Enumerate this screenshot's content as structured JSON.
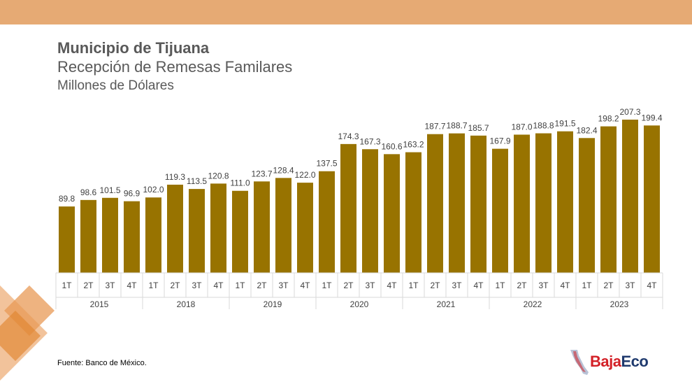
{
  "header": {
    "title": "Municipio de Tijuana",
    "subtitle": "Recepción de Remesas Familares",
    "units": "Millones de Dólares"
  },
  "footer": {
    "source": "Fuente: Banco de México."
  },
  "logo": {
    "part1": "Baja",
    "part2": "Eco"
  },
  "colors": {
    "bar": "#987300",
    "top_band": "#e6aa74",
    "axis_grid": "#d9d9d9",
    "text": "#404040",
    "decor": "#e0852f"
  },
  "chart_data": {
    "type": "bar",
    "title": "Municipio de Tijuana",
    "ylabel": "",
    "xlabel": "",
    "ylim": [
      0,
      210
    ],
    "data_labels": true,
    "grid": false,
    "categories": [
      {
        "quarter": "1T",
        "year": "2015"
      },
      {
        "quarter": "2T",
        "year": "2015"
      },
      {
        "quarter": "3T",
        "year": "2015"
      },
      {
        "quarter": "4T",
        "year": "2015"
      },
      {
        "quarter": "1T",
        "year": "2018"
      },
      {
        "quarter": "2T",
        "year": "2018"
      },
      {
        "quarter": "3T",
        "year": "2018"
      },
      {
        "quarter": "4T",
        "year": "2018"
      },
      {
        "quarter": "1T",
        "year": "2019"
      },
      {
        "quarter": "2T",
        "year": "2019"
      },
      {
        "quarter": "3T",
        "year": "2019"
      },
      {
        "quarter": "4T",
        "year": "2019"
      },
      {
        "quarter": "1T",
        "year": "2020"
      },
      {
        "quarter": "2T",
        "year": "2020"
      },
      {
        "quarter": "3T",
        "year": "2020"
      },
      {
        "quarter": "4T",
        "year": "2020"
      },
      {
        "quarter": "1T",
        "year": "2021"
      },
      {
        "quarter": "2T",
        "year": "2021"
      },
      {
        "quarter": "3T",
        "year": "2021"
      },
      {
        "quarter": "4T",
        "year": "2021"
      },
      {
        "quarter": "1T",
        "year": "2022"
      },
      {
        "quarter": "2T",
        "year": "2022"
      },
      {
        "quarter": "3T",
        "year": "2022"
      },
      {
        "quarter": "4T",
        "year": "2022"
      },
      {
        "quarter": "1T",
        "year": "2023"
      },
      {
        "quarter": "2T",
        "year": "2023"
      },
      {
        "quarter": "3T",
        "year": "2023"
      },
      {
        "quarter": "4T",
        "year": "2023"
      }
    ],
    "years": [
      "2015",
      "2018",
      "2019",
      "2020",
      "2021",
      "2022",
      "2023"
    ],
    "values": [
      89.8,
      98.6,
      101.5,
      96.9,
      102.0,
      119.3,
      113.5,
      120.8,
      111.0,
      123.7,
      128.4,
      122.0,
      137.5,
      174.3,
      167.3,
      160.6,
      163.2,
      187.7,
      188.7,
      185.7,
      167.9,
      187.0,
      188.8,
      191.5,
      182.4,
      198.2,
      207.3,
      199.4
    ]
  }
}
